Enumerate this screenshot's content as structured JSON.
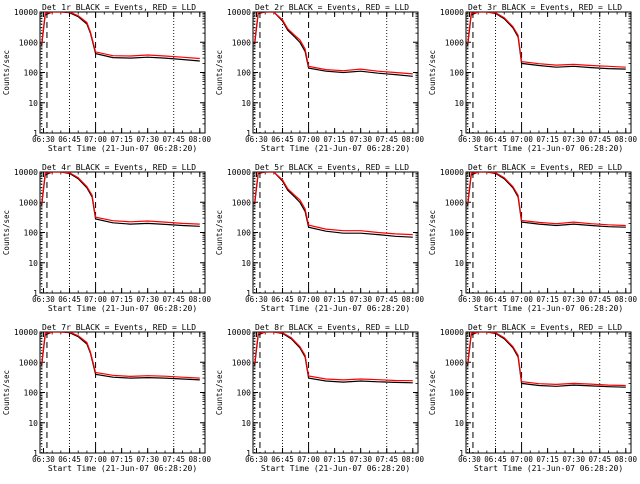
{
  "chart_data": [
    {
      "type": "line",
      "title": "Det 1r BLACK = Events, RED = LLD",
      "xlabel": "Start Time (21-Jun-07 06:28:20)",
      "ylabel": "Counts/sec",
      "yscale": "log",
      "ylim": [
        1,
        10000
      ],
      "xlim": [
        "06:28",
        "08:03"
      ],
      "yticks": [
        "1",
        "10",
        "100",
        "1000",
        "10000"
      ],
      "xticks": [
        "06:30",
        "06:45",
        "07:00",
        "07:15",
        "07:30",
        "07:45",
        "08:00"
      ],
      "dotted_lines": [
        "06:29",
        "06:45",
        "07:45"
      ],
      "dashed_lines": [
        "06:32",
        "07:00"
      ],
      "series": [
        {
          "color": "#000000",
          "x": [
            "06:29",
            "06:31",
            "06:35",
            "06:40",
            "06:45",
            "06:50",
            "06:55",
            "06:57",
            "07:00",
            "07:10",
            "07:20",
            "07:30",
            "07:40",
            "07:50",
            "08:00"
          ],
          "y": [
            800,
            8000,
            10000,
            10000,
            9500,
            7000,
            4000,
            2000,
            420,
            310,
            300,
            320,
            300,
            270,
            240
          ]
        },
        {
          "color": "#ff0000",
          "x": [
            "06:29",
            "06:31",
            "06:35",
            "06:40",
            "06:45",
            "06:50",
            "06:55",
            "06:57",
            "07:00",
            "07:10",
            "07:20",
            "07:30",
            "07:40",
            "07:50",
            "08:00"
          ],
          "y": [
            900,
            9000,
            10000,
            10000,
            10000,
            7500,
            4500,
            2200,
            480,
            360,
            350,
            380,
            350,
            320,
            290
          ]
        }
      ]
    },
    {
      "type": "line",
      "title": "Det 2r BLACK = Events, RED = LLD",
      "xlabel": "Start Time (21-Jun-07 06:28:20)",
      "ylabel": "Counts/sec",
      "yscale": "log",
      "ylim": [
        1,
        10000
      ],
      "xlim": [
        "06:28",
        "08:03"
      ],
      "yticks": [
        "1",
        "10",
        "100",
        "1000",
        "10000"
      ],
      "xticks": [
        "06:30",
        "06:45",
        "07:00",
        "07:15",
        "07:30",
        "07:45",
        "08:00"
      ],
      "dotted_lines": [
        "06:29",
        "06:45",
        "07:45"
      ],
      "dashed_lines": [
        "06:32",
        "07:00"
      ],
      "series": [
        {
          "color": "#000000",
          "x": [
            "06:29",
            "06:31",
            "06:35",
            "06:40",
            "06:45",
            "06:48",
            "06:52",
            "06:55",
            "06:58",
            "07:00",
            "07:10",
            "07:20",
            "07:30",
            "07:40",
            "07:50",
            "08:00"
          ],
          "y": [
            900,
            9000,
            10000,
            10000,
            5000,
            2500,
            1500,
            1000,
            500,
            140,
            110,
            100,
            110,
            95,
            85,
            75
          ]
        },
        {
          "color": "#ff0000",
          "x": [
            "06:29",
            "06:31",
            "06:35",
            "06:40",
            "06:45",
            "06:48",
            "06:52",
            "06:55",
            "06:58",
            "07:00",
            "07:10",
            "07:20",
            "07:30",
            "07:40",
            "07:50",
            "08:00"
          ],
          "y": [
            1000,
            10000,
            10000,
            10000,
            5500,
            2800,
            1700,
            1200,
            600,
            160,
            125,
            115,
            130,
            110,
            100,
            90
          ]
        }
      ]
    },
    {
      "type": "line",
      "title": "Det 3r BLACK = Events, RED = LLD",
      "xlabel": "Start Time (21-Jun-07 06:28:20)",
      "ylabel": "Counts/sec",
      "yscale": "log",
      "ylim": [
        1,
        10000
      ],
      "xlim": [
        "06:28",
        "08:03"
      ],
      "yticks": [
        "1",
        "10",
        "100",
        "1000",
        "10000"
      ],
      "xticks": [
        "06:30",
        "06:45",
        "07:00",
        "07:15",
        "07:30",
        "07:45",
        "08:00"
      ],
      "dotted_lines": [
        "06:29",
        "06:45",
        "07:45"
      ],
      "dashed_lines": [
        "06:32",
        "07:00"
      ],
      "series": [
        {
          "color": "#000000",
          "x": [
            "06:29",
            "06:31",
            "06:35",
            "06:40",
            "06:45",
            "06:50",
            "06:55",
            "06:58",
            "07:00",
            "07:10",
            "07:20",
            "07:30",
            "07:40",
            "07:50",
            "08:00"
          ],
          "y": [
            800,
            8000,
            10000,
            10000,
            9000,
            6000,
            3000,
            1500,
            200,
            170,
            150,
            160,
            145,
            135,
            130
          ]
        },
        {
          "color": "#ff0000",
          "x": [
            "06:29",
            "06:31",
            "06:35",
            "06:40",
            "06:45",
            "06:50",
            "06:55",
            "06:58",
            "07:00",
            "07:10",
            "07:20",
            "07:30",
            "07:40",
            "07:50",
            "08:00"
          ],
          "y": [
            900,
            9000,
            10000,
            10000,
            9500,
            6500,
            3300,
            1700,
            230,
            195,
            175,
            185,
            170,
            160,
            150
          ]
        }
      ]
    },
    {
      "type": "line",
      "title": "Det 4r BLACK = Events, RED = LLD",
      "xlabel": "Start Time (21-Jun-07 06:28:20)",
      "ylabel": "Counts/sec",
      "yscale": "log",
      "ylim": [
        1,
        10000
      ],
      "xlim": [
        "06:28",
        "08:03"
      ],
      "yticks": [
        "1",
        "10",
        "100",
        "1000",
        "10000"
      ],
      "xticks": [
        "06:30",
        "06:45",
        "07:00",
        "07:15",
        "07:30",
        "07:45",
        "08:00"
      ],
      "dotted_lines": [
        "06:29",
        "06:45",
        "07:45"
      ],
      "dashed_lines": [
        "06:32",
        "07:00"
      ],
      "series": [
        {
          "color": "#000000",
          "x": [
            "06:29",
            "06:31",
            "06:35",
            "06:40",
            "06:45",
            "06:50",
            "06:55",
            "06:58",
            "07:00",
            "07:10",
            "07:20",
            "07:30",
            "07:40",
            "07:50",
            "08:00"
          ],
          "y": [
            800,
            8000,
            10000,
            10000,
            9000,
            6000,
            3000,
            1500,
            280,
            210,
            190,
            200,
            185,
            170,
            160
          ]
        },
        {
          "color": "#ff0000",
          "x": [
            "06:29",
            "06:31",
            "06:35",
            "06:40",
            "06:45",
            "06:50",
            "06:55",
            "06:58",
            "07:00",
            "07:10",
            "07:20",
            "07:30",
            "07:40",
            "07:50",
            "08:00"
          ],
          "y": [
            900,
            9000,
            10000,
            10000,
            9500,
            6500,
            3300,
            1700,
            320,
            245,
            225,
            240,
            220,
            200,
            190
          ]
        }
      ]
    },
    {
      "type": "line",
      "title": "Det 5r BLACK = Events, RED = LLD",
      "xlabel": "Start Time (21-Jun-07 06:28:20)",
      "ylabel": "Counts/sec",
      "yscale": "log",
      "ylim": [
        1,
        10000
      ],
      "xlim": [
        "06:28",
        "08:03"
      ],
      "yticks": [
        "1",
        "10",
        "100",
        "1000",
        "10000"
      ],
      "xticks": [
        "06:30",
        "06:45",
        "07:00",
        "07:15",
        "07:30",
        "07:45",
        "08:00"
      ],
      "dotted_lines": [
        "06:29",
        "06:45",
        "07:45"
      ],
      "dashed_lines": [
        "06:32",
        "07:00"
      ],
      "series": [
        {
          "color": "#000000",
          "x": [
            "06:29",
            "06:31",
            "06:35",
            "06:40",
            "06:45",
            "06:48",
            "06:52",
            "06:55",
            "06:58",
            "07:00",
            "07:10",
            "07:20",
            "07:30",
            "07:40",
            "07:50",
            "08:00"
          ],
          "y": [
            900,
            9000,
            10000,
            10000,
            5000,
            2500,
            1500,
            1000,
            500,
            150,
            110,
            95,
            95,
            85,
            75,
            70
          ]
        },
        {
          "color": "#ff0000",
          "x": [
            "06:29",
            "06:31",
            "06:35",
            "06:40",
            "06:45",
            "06:48",
            "06:52",
            "06:55",
            "06:58",
            "07:00",
            "07:10",
            "07:20",
            "07:30",
            "07:40",
            "07:50",
            "08:00"
          ],
          "y": [
            1000,
            10000,
            10000,
            10000,
            5500,
            2800,
            1700,
            1200,
            600,
            175,
            130,
            115,
            115,
            100,
            90,
            85
          ]
        }
      ]
    },
    {
      "type": "line",
      "title": "Det 6r BLACK = Events, RED = LLD",
      "xlabel": "Start Time (21-Jun-07 06:28:20)",
      "ylabel": "Counts/sec",
      "yscale": "log",
      "ylim": [
        1,
        10000
      ],
      "xlim": [
        "06:28",
        "08:03"
      ],
      "yticks": [
        "1",
        "10",
        "100",
        "1000",
        "10000"
      ],
      "xticks": [
        "06:30",
        "06:45",
        "07:00",
        "07:15",
        "07:30",
        "07:45",
        "08:00"
      ],
      "dotted_lines": [
        "06:29",
        "06:45",
        "07:45"
      ],
      "dashed_lines": [
        "06:32",
        "07:00"
      ],
      "series": [
        {
          "color": "#000000",
          "x": [
            "06:29",
            "06:31",
            "06:35",
            "06:40",
            "06:45",
            "06:50",
            "06:55",
            "06:58",
            "07:00",
            "07:10",
            "07:20",
            "07:30",
            "07:40",
            "07:50",
            "08:00"
          ],
          "y": [
            800,
            8000,
            10000,
            10000,
            9000,
            6000,
            3000,
            1500,
            220,
            190,
            170,
            190,
            170,
            155,
            150
          ]
        },
        {
          "color": "#ff0000",
          "x": [
            "06:29",
            "06:31",
            "06:35",
            "06:40",
            "06:45",
            "06:50",
            "06:55",
            "06:58",
            "07:00",
            "07:10",
            "07:20",
            "07:30",
            "07:40",
            "07:50",
            "08:00"
          ],
          "y": [
            900,
            9000,
            10000,
            10000,
            9500,
            6500,
            3300,
            1700,
            250,
            215,
            195,
            220,
            195,
            180,
            170
          ]
        }
      ]
    },
    {
      "type": "line",
      "title": "Det 7r BLACK = Events, RED = LLD",
      "xlabel": "Start Time (21-Jun-07 06:28:20)",
      "ylabel": "Counts/sec",
      "yscale": "log",
      "ylim": [
        1,
        10000
      ],
      "xlim": [
        "06:28",
        "08:03"
      ],
      "yticks": [
        "1",
        "10",
        "100",
        "1000",
        "10000"
      ],
      "xticks": [
        "06:30",
        "06:45",
        "07:00",
        "07:15",
        "07:30",
        "07:45",
        "08:00"
      ],
      "dotted_lines": [
        "06:29",
        "06:45",
        "07:45"
      ],
      "dashed_lines": [
        "06:32",
        "07:00"
      ],
      "series": [
        {
          "color": "#000000",
          "x": [
            "06:29",
            "06:31",
            "06:35",
            "06:40",
            "06:45",
            "06:50",
            "06:55",
            "06:57",
            "07:00",
            "07:10",
            "07:20",
            "07:30",
            "07:40",
            "07:50",
            "08:00"
          ],
          "y": [
            800,
            8000,
            10000,
            10000,
            9500,
            7000,
            4000,
            2000,
            400,
            320,
            300,
            310,
            300,
            280,
            260
          ]
        },
        {
          "color": "#ff0000",
          "x": [
            "06:29",
            "06:31",
            "06:35",
            "06:40",
            "06:45",
            "06:50",
            "06:55",
            "06:57",
            "07:00",
            "07:10",
            "07:20",
            "07:30",
            "07:40",
            "07:50",
            "08:00"
          ],
          "y": [
            900,
            9000,
            10000,
            10000,
            10000,
            7500,
            4500,
            2200,
            460,
            370,
            340,
            360,
            345,
            320,
            300
          ]
        }
      ]
    },
    {
      "type": "line",
      "title": "Det 8r BLACK = Events, RED = LLD",
      "xlabel": "Start Time (21-Jun-07 06:28:20)",
      "ylabel": "Counts/sec",
      "yscale": "log",
      "ylim": [
        1,
        10000
      ],
      "xlim": [
        "06:28",
        "08:03"
      ],
      "yticks": [
        "1",
        "10",
        "100",
        "1000",
        "10000"
      ],
      "xticks": [
        "06:30",
        "06:45",
        "07:00",
        "07:15",
        "07:30",
        "07:45",
        "08:00"
      ],
      "dotted_lines": [
        "06:29",
        "06:45",
        "07:45"
      ],
      "dashed_lines": [
        "06:32",
        "07:00"
      ],
      "series": [
        {
          "color": "#000000",
          "x": [
            "06:29",
            "06:31",
            "06:35",
            "06:40",
            "06:45",
            "06:50",
            "06:55",
            "06:58",
            "07:00",
            "07:10",
            "07:20",
            "07:30",
            "07:40",
            "07:50",
            "08:00"
          ],
          "y": [
            800,
            8000,
            10000,
            10000,
            9000,
            6000,
            3000,
            1500,
            300,
            240,
            220,
            240,
            225,
            215,
            210
          ]
        },
        {
          "color": "#ff0000",
          "x": [
            "06:29",
            "06:31",
            "06:35",
            "06:40",
            "06:45",
            "06:50",
            "06:55",
            "06:58",
            "07:00",
            "07:10",
            "07:20",
            "07:30",
            "07:40",
            "07:50",
            "08:00"
          ],
          "y": [
            900,
            9000,
            10000,
            10000,
            9500,
            6500,
            3300,
            1700,
            350,
            280,
            260,
            280,
            265,
            250,
            245
          ]
        }
      ]
    },
    {
      "type": "line",
      "title": "Det 9r BLACK = Events, RED = LLD",
      "xlabel": "Start Time (21-Jun-07 06:28:20)",
      "ylabel": "Counts/sec",
      "yscale": "log",
      "ylim": [
        1,
        10000
      ],
      "xlim": [
        "06:28",
        "08:03"
      ],
      "yticks": [
        "1",
        "10",
        "100",
        "1000",
        "10000"
      ],
      "xticks": [
        "06:30",
        "06:45",
        "07:00",
        "07:15",
        "07:30",
        "07:45",
        "08:00"
      ],
      "dotted_lines": [
        "06:29",
        "06:45",
        "07:45"
      ],
      "dashed_lines": [
        "06:32",
        "07:00"
      ],
      "series": [
        {
          "color": "#000000",
          "x": [
            "06:29",
            "06:31",
            "06:35",
            "06:40",
            "06:45",
            "06:50",
            "06:55",
            "06:58",
            "07:00",
            "07:10",
            "07:20",
            "07:30",
            "07:40",
            "07:50",
            "08:00"
          ],
          "y": [
            800,
            8000,
            10000,
            10000,
            9000,
            6000,
            3000,
            1500,
            200,
            170,
            160,
            175,
            165,
            155,
            150
          ]
        },
        {
          "color": "#ff0000",
          "x": [
            "06:29",
            "06:31",
            "06:35",
            "06:40",
            "06:45",
            "06:50",
            "06:55",
            "06:58",
            "07:00",
            "07:10",
            "07:20",
            "07:30",
            "07:40",
            "07:50",
            "08:00"
          ],
          "y": [
            900,
            9000,
            10000,
            10000,
            9500,
            6500,
            3300,
            1700,
            230,
            195,
            185,
            200,
            190,
            175,
            170
          ]
        }
      ]
    }
  ]
}
